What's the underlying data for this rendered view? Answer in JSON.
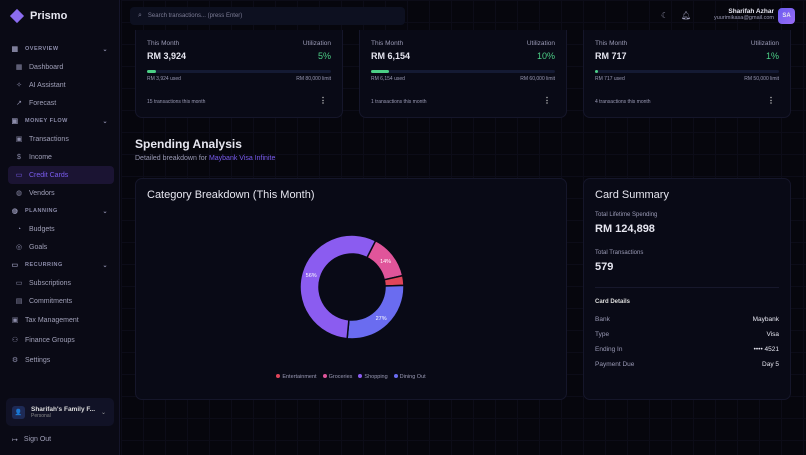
{
  "app": {
    "name": "Prismo"
  },
  "sidebar": {
    "sections": [
      {
        "label": "OVERVIEW",
        "items": [
          "Dashboard",
          "AI Assistant",
          "Forecast"
        ]
      },
      {
        "label": "MONEY FLOW",
        "items": [
          "Transactions",
          "Income",
          "Credit Cards",
          "Vendors"
        ]
      },
      {
        "label": "PLANNING",
        "items": [
          "Budgets",
          "Goals"
        ]
      },
      {
        "label": "RECURRING",
        "items": [
          "Subscriptions",
          "Commitments"
        ]
      }
    ],
    "top_items": [
      "Tax Management",
      "Finance Groups",
      "Settings"
    ],
    "active": "Credit Cards",
    "family": {
      "name": "Sharifah's Family F...",
      "role": "Personal"
    },
    "sign_out": "Sign Out"
  },
  "header": {
    "search_placeholder": "Search transactions... (press Enter)",
    "user_name": "Sharifah Azhar",
    "user_email": "yuurimikasa@gmail.com",
    "avatar_initials": "SA"
  },
  "cards": [
    {
      "this_month_label": "This Month",
      "utilization_label": "Utilization",
      "amount": "RM 3,924",
      "utilization": "5%",
      "progress": 5,
      "used": "RM 3,924 used",
      "limit": "RM 80,000 limit",
      "transactions": "15 transactions this month"
    },
    {
      "this_month_label": "This Month",
      "utilization_label": "Utilization",
      "amount": "RM 6,154",
      "utilization": "10%",
      "progress": 10,
      "used": "RM 6,154 used",
      "limit": "RM 60,000 limit",
      "transactions": "1 transactions this month"
    },
    {
      "this_month_label": "This Month",
      "utilization_label": "Utilization",
      "amount": "RM 717",
      "utilization": "1%",
      "progress": 1,
      "used": "RM 717 used",
      "limit": "RM 50,000 limit",
      "transactions": "4 transactions this month"
    }
  ],
  "spending": {
    "title": "Spending Analysis",
    "subtitle": "Detailed breakdown for ",
    "card_name": "Maybank Visa Infinite"
  },
  "chart_data": {
    "type": "pie",
    "title": "Category Breakdown (This Month)",
    "donut": true,
    "slices": [
      {
        "name": "Groceries",
        "value": 14,
        "label": "14%",
        "color": "#e0559a"
      },
      {
        "name": "Entertainment",
        "value": 3,
        "label": "",
        "color": "#e0455a"
      },
      {
        "name": "Dining Out",
        "value": 27,
        "label": "27%",
        "color": "#6a6cf0"
      },
      {
        "name": "Shopping",
        "value": 56,
        "label": "56%",
        "color": "#8b5cf0"
      }
    ],
    "legend": [
      "Entertainment",
      "Groceries",
      "Shopping",
      "Dining Out"
    ],
    "legend_placement": "bottom"
  },
  "summary": {
    "title": "Card Summary",
    "lifetime_label": "Total Lifetime Spending",
    "lifetime": "RM 124,898",
    "tx_label": "Total Transactions",
    "tx": "579",
    "details_title": "Card Details",
    "details": [
      {
        "k": "Bank",
        "v": "Maybank"
      },
      {
        "k": "Type",
        "v": "Visa"
      },
      {
        "k": "Ending In",
        "v": "•••• 4521"
      },
      {
        "k": "Payment Due",
        "v": "Day 5"
      }
    ]
  }
}
